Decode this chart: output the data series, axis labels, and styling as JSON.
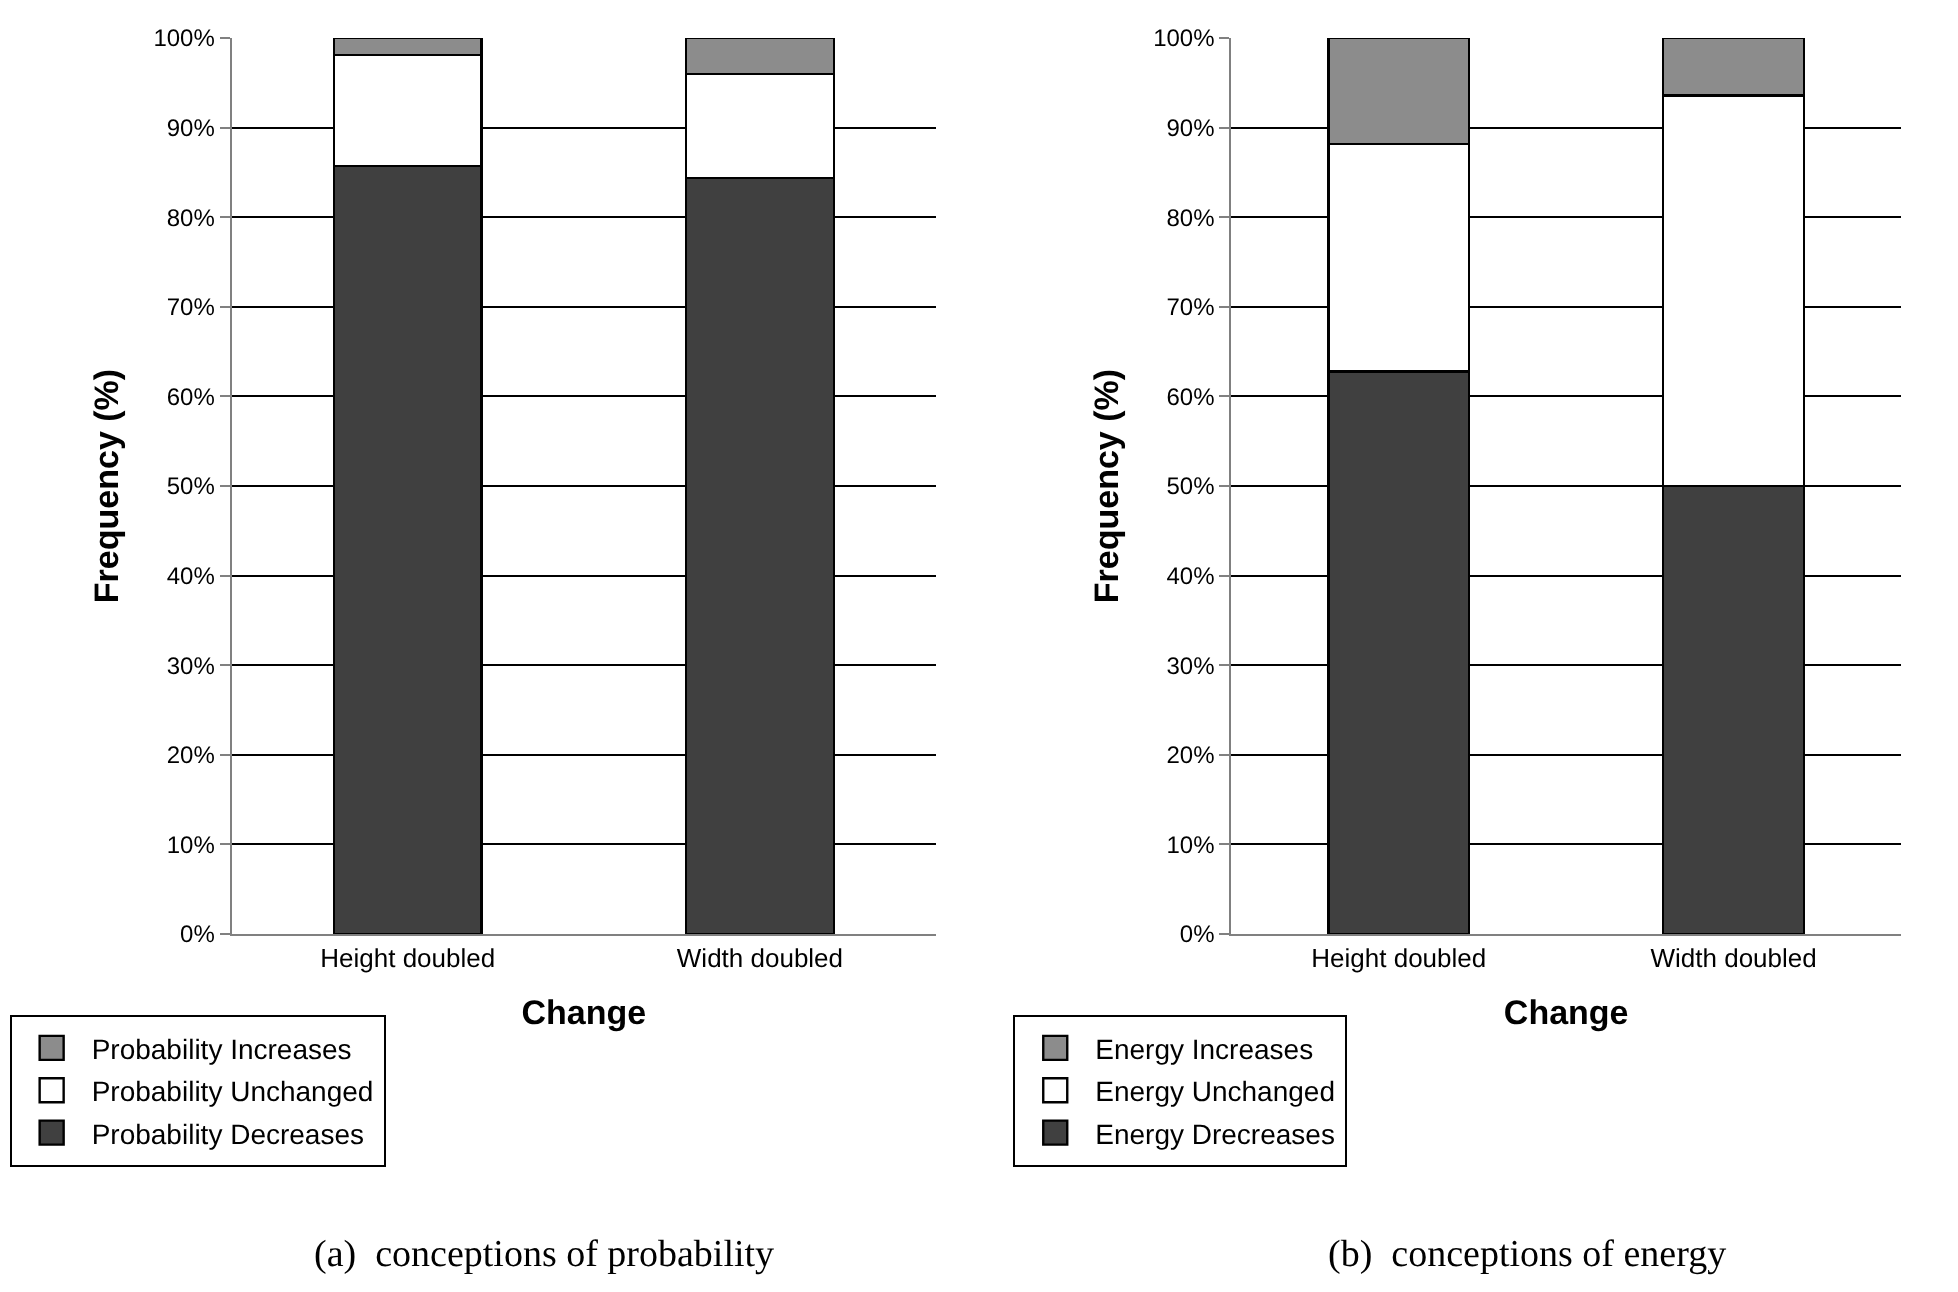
{
  "chart_data": [
    {
      "type": "bar",
      "stacked": true,
      "xlabel": "Change",
      "ylabel": "Frequency (%)",
      "categories": [
        "Height doubled",
        "Width doubled"
      ],
      "series": [
        {
          "name": "Probability Decreases",
          "color": "#404040",
          "values": [
            85.7,
            84.4
          ]
        },
        {
          "name": "Probability Unchanged",
          "color": "#ffffff",
          "values": [
            12.4,
            11.6
          ]
        },
        {
          "name": "Probability Increases",
          "color": "#8c8c8c",
          "values": [
            1.9,
            4.0
          ]
        }
      ],
      "ylim": [
        0,
        100
      ],
      "yticks": [
        {
          "value": 0,
          "label": "0%"
        },
        {
          "value": 10,
          "label": "10%"
        },
        {
          "value": 20,
          "label": "20%"
        },
        {
          "value": 30,
          "label": "30%"
        },
        {
          "value": 40,
          "label": "40%"
        },
        {
          "value": 50,
          "label": "50%"
        },
        {
          "value": 60,
          "label": "60%"
        },
        {
          "value": 70,
          "label": "70%"
        },
        {
          "value": 80,
          "label": "80%"
        },
        {
          "value": 90,
          "label": "90%"
        },
        {
          "value": 100,
          "label": "100%"
        }
      ],
      "grid": "y",
      "legend": "bottom left",
      "annotations": [
        "(a)  conceptions of probability"
      ]
    },
    {
      "type": "bar",
      "stacked": true,
      "xlabel": "Change",
      "ylabel": "Frequency (%)",
      "categories": [
        "Height doubled",
        "Width doubled"
      ],
      "series": [
        {
          "name": "Energy Drecreases",
          "color": "#404040",
          "values": [
            62.8,
            50.0
          ]
        },
        {
          "name": "Energy Unchanged",
          "color": "#ffffff",
          "values": [
            25.4,
            43.6
          ]
        },
        {
          "name": "Energy Increases",
          "color": "#8c8c8c",
          "values": [
            11.8,
            6.4
          ]
        }
      ],
      "ylim": [
        0,
        100
      ],
      "yticks": [
        {
          "value": 0,
          "label": "0%"
        },
        {
          "value": 10,
          "label": "10%"
        },
        {
          "value": 20,
          "label": "20%"
        },
        {
          "value": 30,
          "label": "30%"
        },
        {
          "value": 40,
          "label": "40%"
        },
        {
          "value": 50,
          "label": "50%"
        },
        {
          "value": 60,
          "label": "60%"
        },
        {
          "value": 70,
          "label": "70%"
        },
        {
          "value": 80,
          "label": "80%"
        },
        {
          "value": 90,
          "label": "90%"
        },
        {
          "value": 100,
          "label": "100%"
        }
      ],
      "grid": "y",
      "legend": "bottom left",
      "annotations": [
        "(b)  conceptions of energy"
      ]
    }
  ]
}
